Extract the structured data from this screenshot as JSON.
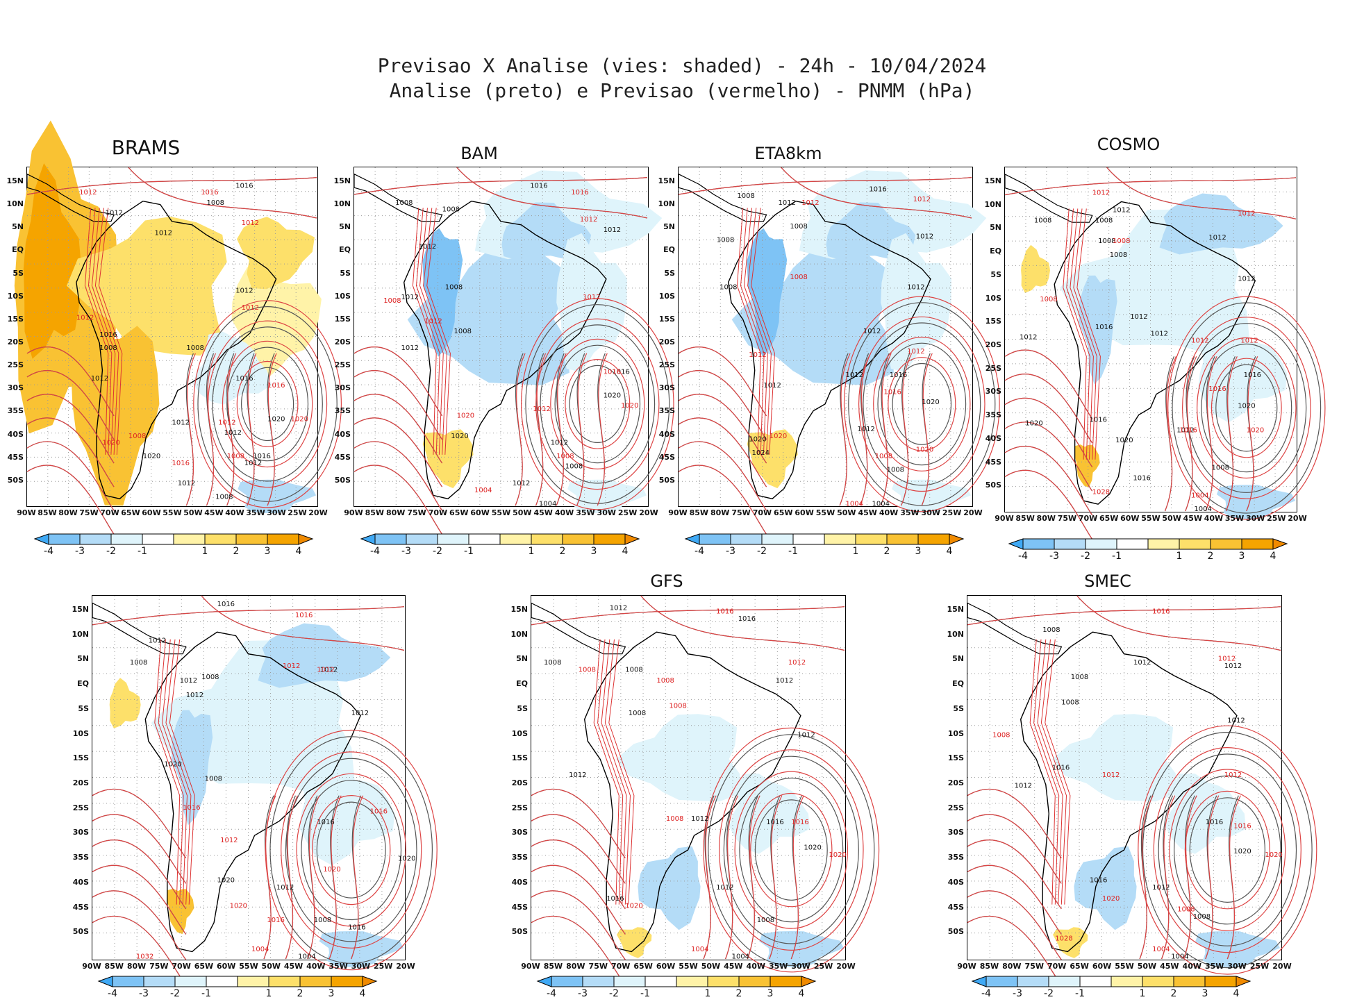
{
  "title": {
    "line1": "Previsao X Analise (vies: shaded) - 24h - 10/04/2024",
    "line2": "Analise (preto) e Previsao (vermelho) - PNMM (hPa)"
  },
  "lat_labels": [
    "15N",
    "10N",
    "5N",
    "EQ",
    "5S",
    "10S",
    "15S",
    "20S",
    "25S",
    "30S",
    "35S",
    "40S",
    "45S",
    "50S"
  ],
  "lon_labels": [
    "90W",
    "85W",
    "80W",
    "75W",
    "70W",
    "65W",
    "60W",
    "55W",
    "50W",
    "45W",
    "40W",
    "35W",
    "30W",
    "25W",
    "20W"
  ],
  "colorbar_labels": [
    "-4",
    "-3",
    "-2",
    "-1",
    "1",
    "2",
    "3",
    "4"
  ],
  "colorbar_colors": [
    "#3fa9f5",
    "#7ec3f5",
    "#b4dcf7",
    "#dff4fb",
    "#ffffff",
    "#fff3a8",
    "#fde06a",
    "#f9c233",
    "#f5a400",
    "#f08a00"
  ],
  "panels": [
    {
      "id": "brams",
      "title": "BRAMS",
      "bias": "warm",
      "labels": [
        [
          "1016",
          "72",
          "4"
        ],
        [
          "1008",
          "62",
          "9"
        ],
        [
          "1012",
          "44",
          "18"
        ],
        [
          "1012",
          "27",
          "12"
        ],
        [
          "1008",
          "55",
          "52"
        ],
        [
          "1012",
          "72",
          "35"
        ],
        [
          "1008",
          "25",
          "52"
        ],
        [
          "1016",
          "72",
          "61"
        ],
        [
          "1012",
          "68",
          "77"
        ],
        [
          "1020",
          "83",
          "73"
        ],
        [
          "1012",
          "50",
          "74"
        ],
        [
          "1020",
          "40",
          "84"
        ],
        [
          "1012",
          "75",
          "86"
        ],
        [
          "1016",
          "78",
          "84"
        ],
        [
          "1008",
          "65",
          "96"
        ],
        [
          "1012",
          "52",
          "92"
        ],
        [
          "1016",
          "25",
          "48"
        ],
        [
          "1012",
          "22",
          "61"
        ]
      ],
      "red_labels": [
        [
          "1012",
          "18",
          "6"
        ],
        [
          "1016",
          "60",
          "6"
        ],
        [
          "1012",
          "74",
          "15"
        ],
        [
          "1012",
          "17",
          "43"
        ],
        [
          "1012",
          "74",
          "40"
        ],
        [
          "1012",
          "66",
          "74"
        ],
        [
          "1016",
          "83",
          "63"
        ],
        [
          "1020",
          "91",
          "73"
        ],
        [
          "1016",
          "50",
          "86"
        ],
        [
          "1008",
          "69",
          "84"
        ],
        [
          "1020",
          "26",
          "80"
        ],
        [
          "1008",
          "35",
          "78"
        ]
      ]
    },
    {
      "id": "bam",
      "title": "BAM",
      "bias": "cool",
      "labels": [
        [
          "1016",
          "60",
          "4"
        ],
        [
          "1008",
          "14",
          "9"
        ],
        [
          "1008",
          "30",
          "11"
        ],
        [
          "1012",
          "85",
          "17"
        ],
        [
          "1012",
          "22",
          "22"
        ],
        [
          "1008",
          "31",
          "34"
        ],
        [
          "1012",
          "16",
          "37"
        ],
        [
          "1012",
          "16",
          "52"
        ],
        [
          "1008",
          "34",
          "47"
        ],
        [
          "1016",
          "88",
          "59"
        ],
        [
          "1020",
          "85",
          "66"
        ],
        [
          "1012",
          "67",
          "80"
        ],
        [
          "1008",
          "72",
          "87"
        ],
        [
          "1012",
          "54",
          "92"
        ],
        [
          "1004",
          "63",
          "98"
        ],
        [
          "1020",
          "33",
          "78"
        ]
      ],
      "red_labels": [
        [
          "1016",
          "74",
          "6"
        ],
        [
          "1012",
          "77",
          "14"
        ],
        [
          "1008",
          "10",
          "38"
        ],
        [
          "1012",
          "78",
          "37"
        ],
        [
          "1012",
          "24",
          "44"
        ],
        [
          "1016",
          "85",
          "59"
        ],
        [
          "1020",
          "91",
          "69"
        ],
        [
          "1012",
          "61",
          "70"
        ],
        [
          "1008",
          "69",
          "84"
        ],
        [
          "1004",
          "41",
          "94"
        ],
        [
          "1020",
          "35",
          "72"
        ]
      ]
    },
    {
      "id": "eta",
      "title": "ETA8km",
      "bias": "cool",
      "labels": [
        [
          "1016",
          "65",
          "5"
        ],
        [
          "1008",
          "20",
          "7"
        ],
        [
          "1012",
          "34",
          "9"
        ],
        [
          "1008",
          "38",
          "16"
        ],
        [
          "1012",
          "81",
          "19"
        ],
        [
          "1008",
          "13",
          "20"
        ],
        [
          "1008",
          "14",
          "34"
        ],
        [
          "1012",
          "78",
          "34"
        ],
        [
          "1012",
          "63",
          "47"
        ],
        [
          "1012",
          "57",
          "60"
        ],
        [
          "1016",
          "72",
          "60"
        ],
        [
          "1020",
          "83",
          "68"
        ],
        [
          "1012",
          "61",
          "76"
        ],
        [
          "1008",
          "71",
          "88"
        ],
        [
          "1004",
          "66",
          "98"
        ],
        [
          "1012",
          "29",
          "63"
        ],
        [
          "1020",
          "24",
          "79"
        ],
        [
          "1024",
          "25",
          "83"
        ]
      ],
      "red_labels": [
        [
          "1012",
          "80",
          "8"
        ],
        [
          "1012",
          "42",
          "9"
        ],
        [
          "1008",
          "38",
          "31"
        ],
        [
          "1012",
          "78",
          "53"
        ],
        [
          "1016",
          "70",
          "65"
        ],
        [
          "1020",
          "81",
          "82"
        ],
        [
          "1008",
          "67",
          "84"
        ],
        [
          "1004",
          "57",
          "98"
        ],
        [
          "1012",
          "24",
          "54"
        ],
        [
          "1020",
          "31",
          "78"
        ]
      ]
    },
    {
      "id": "cosmo",
      "title": "COSMO",
      "bias": "mixed",
      "labels": [
        [
          "1012",
          "37",
          "11"
        ],
        [
          "1008",
          "10",
          "14"
        ],
        [
          "1008",
          "31",
          "14"
        ],
        [
          "1012",
          "70",
          "19"
        ],
        [
          "1008",
          "32",
          "20"
        ],
        [
          "1008",
          "36",
          "24"
        ],
        [
          "1012",
          "43",
          "42"
        ],
        [
          "1016",
          "31",
          "45"
        ],
        [
          "1012",
          "50",
          "47"
        ],
        [
          "1016",
          "82",
          "59"
        ],
        [
          "1020",
          "80",
          "68"
        ],
        [
          "1012",
          "59",
          "75"
        ],
        [
          "1008",
          "71",
          "86"
        ],
        [
          "1016",
          "44",
          "89"
        ],
        [
          "1004",
          "65",
          "98"
        ],
        [
          "1020",
          "7",
          "73"
        ],
        [
          "1016",
          "29",
          "72"
        ],
        [
          "1020",
          "38",
          "78"
        ],
        [
          "1012",
          "5",
          "48"
        ],
        [
          "1012",
          "80",
          "31"
        ]
      ],
      "red_labels": [
        [
          "1012",
          "30",
          "6"
        ],
        [
          "1012",
          "80",
          "12"
        ],
        [
          "1008",
          "37",
          "20"
        ],
        [
          "1012",
          "64",
          "49"
        ],
        [
          "1012",
          "81",
          "49"
        ],
        [
          "1016",
          "70",
          "63"
        ],
        [
          "1020",
          "83",
          "75"
        ],
        [
          "1016",
          "60",
          "75"
        ],
        [
          "1004",
          "64",
          "94"
        ],
        [
          "1028",
          "30",
          "93"
        ],
        [
          "1008",
          "12",
          "37"
        ]
      ]
    },
    {
      "id": "p5",
      "title": "",
      "bias": "mixed",
      "labels": [
        [
          "1016",
          "40",
          "1"
        ],
        [
          "1012",
          "18",
          "11"
        ],
        [
          "1008",
          "12",
          "17"
        ],
        [
          "1012",
          "73",
          "19"
        ],
        [
          "1012",
          "28",
          "22"
        ],
        [
          "1008",
          "35",
          "21"
        ],
        [
          "1012",
          "83",
          "31"
        ],
        [
          "1020",
          "23",
          "45"
        ],
        [
          "1008",
          "36",
          "49"
        ],
        [
          "1016",
          "72",
          "61"
        ],
        [
          "1020",
          "40",
          "77"
        ],
        [
          "1012",
          "59",
          "79"
        ],
        [
          "1016",
          "82",
          "90"
        ],
        [
          "1008",
          "71",
          "88"
        ],
        [
          "1004",
          "66",
          "98"
        ],
        [
          "1012",
          "30",
          "26"
        ],
        [
          "1020",
          "98",
          "71"
        ]
      ],
      "red_labels": [
        [
          "1016",
          "65",
          "4"
        ],
        [
          "1012",
          "61",
          "18"
        ],
        [
          "1012",
          "72",
          "19"
        ],
        [
          "1016",
          "29",
          "57"
        ],
        [
          "1012",
          "41",
          "66"
        ],
        [
          "1016",
          "89",
          "58"
        ],
        [
          "1020",
          "74",
          "74"
        ],
        [
          "1016",
          "56",
          "88"
        ],
        [
          "1004",
          "51",
          "96"
        ],
        [
          "1032",
          "14",
          "98"
        ],
        [
          "1020",
          "44",
          "84"
        ]
      ]
    },
    {
      "id": "gfs",
      "title": "GFS",
      "bias": "slightcool",
      "labels": [
        [
          "1012",
          "25",
          "2"
        ],
        [
          "1016",
          "66",
          "5"
        ],
        [
          "1008",
          "4",
          "17"
        ],
        [
          "1012",
          "78",
          "22"
        ],
        [
          "1008",
          "30",
          "19"
        ],
        [
          "1008",
          "31",
          "31"
        ],
        [
          "1012",
          "85",
          "37"
        ],
        [
          "1012",
          "12",
          "48"
        ],
        [
          "1016",
          "75",
          "61"
        ],
        [
          "1020",
          "87",
          "68"
        ],
        [
          "1012",
          "59",
          "79"
        ],
        [
          "1008",
          "72",
          "88"
        ],
        [
          "1004",
          "64",
          "98"
        ],
        [
          "1016",
          "24",
          "82"
        ],
        [
          "1012",
          "51",
          "60"
        ]
      ],
      "red_labels": [
        [
          "1016",
          "59",
          "3"
        ],
        [
          "1012",
          "82",
          "17"
        ],
        [
          "1008",
          "15",
          "19"
        ],
        [
          "1008",
          "40",
          "22"
        ],
        [
          "1008",
          "44",
          "29"
        ],
        [
          "1016",
          "83",
          "61"
        ],
        [
          "1020",
          "95",
          "70"
        ],
        [
          "1020",
          "30",
          "84"
        ],
        [
          "1004",
          "51",
          "96"
        ],
        [
          "1008",
          "43",
          "60"
        ]
      ]
    },
    {
      "id": "smec",
      "title": "SMEC",
      "bias": "slightcool",
      "labels": [
        [
          "1008",
          "24",
          "8"
        ],
        [
          "1012",
          "53",
          "17"
        ],
        [
          "1012",
          "82",
          "18"
        ],
        [
          "1008",
          "33",
          "21"
        ],
        [
          "1008",
          "30",
          "28"
        ],
        [
          "1012",
          "83",
          "33"
        ],
        [
          "1016",
          "27",
          "46"
        ],
        [
          "1012",
          "15",
          "51"
        ],
        [
          "1016",
          "76",
          "61"
        ],
        [
          "1020",
          "85",
          "69"
        ],
        [
          "1012",
          "59",
          "79"
        ],
        [
          "1008",
          "72",
          "87"
        ],
        [
          "1004",
          "65",
          "98"
        ],
        [
          "1016",
          "39",
          "77"
        ]
      ],
      "red_labels": [
        [
          "1016",
          "59",
          "3"
        ],
        [
          "1012",
          "80",
          "16"
        ],
        [
          "1008",
          "8",
          "37"
        ],
        [
          "1012",
          "43",
          "48"
        ],
        [
          "1012",
          "82",
          "48"
        ],
        [
          "1016",
          "85",
          "62"
        ],
        [
          "1020",
          "95",
          "70"
        ],
        [
          "1020",
          "43",
          "82"
        ],
        [
          "1008",
          "67",
          "85"
        ],
        [
          "1004",
          "59",
          "96"
        ],
        [
          "1028",
          "28",
          "93"
        ]
      ]
    }
  ]
}
